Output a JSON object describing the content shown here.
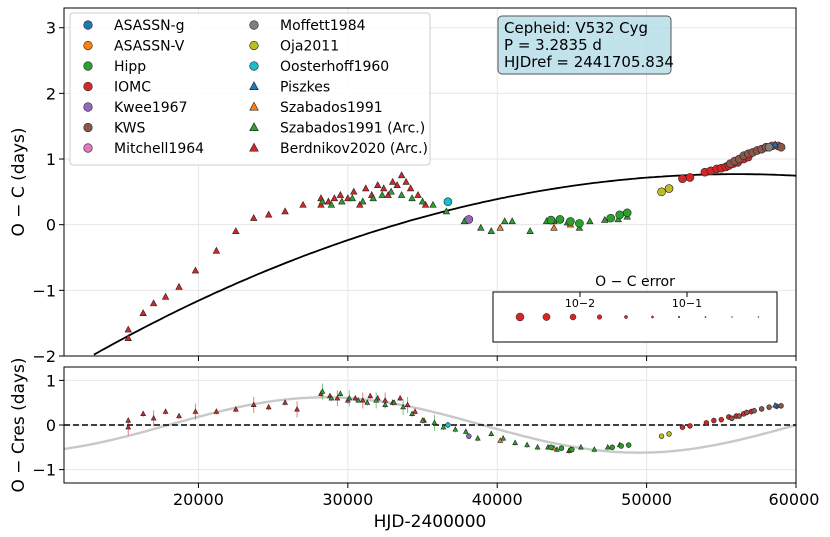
{
  "chart_data": [
    {
      "type": "scatter",
      "ylabel": "O − C (days)",
      "xlim": [
        11000,
        60000
      ],
      "ylim": [
        -2,
        3.3
      ],
      "yticks": [
        -2,
        -1,
        0,
        1,
        2,
        3
      ],
      "ytick_labels": [
        "−2",
        "−1",
        "0",
        "1",
        "2",
        "3"
      ],
      "grid": true,
      "info_box": {
        "line1": "Cepheid: V532 Cyg",
        "line2": "P = 3.2835 d",
        "line3": "HJDref = 2441705.834"
      },
      "legend": {
        "location": "upper-left",
        "entries": [
          {
            "label": "ASASSN-g",
            "marker": "circle",
            "color": "#1f77b4"
          },
          {
            "label": "ASASSN-V",
            "marker": "circle",
            "color": "#ff7f0e"
          },
          {
            "label": "Hipp",
            "marker": "circle",
            "color": "#2ca02c"
          },
          {
            "label": "IOMC",
            "marker": "circle",
            "color": "#d62728"
          },
          {
            "label": "Kwee1967",
            "marker": "circle",
            "color": "#9467bd"
          },
          {
            "label": "KWS",
            "marker": "circle",
            "color": "#8c564b"
          },
          {
            "label": "Mitchell1964",
            "marker": "circle",
            "color": "#e377c2"
          },
          {
            "label": "Moffett1984",
            "marker": "circle",
            "color": "#7f7f7f"
          },
          {
            "label": "Oja2011",
            "marker": "circle",
            "color": "#bcbd22"
          },
          {
            "label": "Oosterhoff1960",
            "marker": "circle",
            "color": "#17becf"
          },
          {
            "label": "Piszkes",
            "marker": "triangle",
            "color": "#1f77b4"
          },
          {
            "label": "Szabados1991",
            "marker": "triangle",
            "color": "#ff7f0e"
          },
          {
            "label": "Szabados1991 (Arc.)",
            "marker": "triangle",
            "color": "#2ca02c"
          },
          {
            "label": "Berdnikov2020 (Arc.)",
            "marker": "triangle",
            "color": "#d62728"
          }
        ]
      },
      "error_legend": {
        "title": "O − C error",
        "tick1": "10−2",
        "tick2": "10−1"
      },
      "fit_curve": {
        "type": "parabola",
        "vertex_x": 56000,
        "vertex_y": 0.77,
        "y_at_13000": -1.98
      },
      "series": [
        {
          "name": "Berdnikov2020 (Arc.)",
          "marker": "triangle",
          "color": "#d62728",
          "points": [
            [
              15300,
              -1.73
            ],
            [
              15300,
              -1.6
            ],
            [
              16300,
              -1.35
            ],
            [
              17000,
              -1.2
            ],
            [
              17800,
              -1.1
            ],
            [
              18700,
              -0.95
            ],
            [
              19800,
              -0.7
            ],
            [
              21200,
              -0.4
            ],
            [
              22500,
              -0.1
            ],
            [
              23700,
              0.1
            ],
            [
              24700,
              0.15
            ],
            [
              25800,
              0.2
            ],
            [
              27000,
              0.3
            ],
            [
              28200,
              0.4
            ],
            [
              28200,
              0.3
            ],
            [
              28700,
              0.35
            ],
            [
              29100,
              0.4
            ],
            [
              29500,
              0.45
            ],
            [
              30000,
              0.4
            ],
            [
              30400,
              0.5
            ],
            [
              30800,
              0.3
            ],
            [
              31200,
              0.55
            ],
            [
              31600,
              0.45
            ],
            [
              32000,
              0.6
            ],
            [
              32400,
              0.55
            ],
            [
              32700,
              0.45
            ],
            [
              33000,
              0.65
            ],
            [
              33300,
              0.6
            ],
            [
              33600,
              0.75
            ],
            [
              33900,
              0.65
            ],
            [
              34200,
              0.55
            ],
            [
              34700,
              0.45
            ],
            [
              35200,
              0.3
            ]
          ]
        },
        {
          "name": "Szabados1991 (Arc.)",
          "marker": "triangle",
          "color": "#2ca02c",
          "points": [
            [
              28300,
              0.35
            ],
            [
              28900,
              0.3
            ],
            [
              29600,
              0.35
            ],
            [
              30300,
              0.4
            ],
            [
              31000,
              0.35
            ],
            [
              31700,
              0.4
            ],
            [
              32300,
              0.45
            ],
            [
              32900,
              0.5
            ],
            [
              33600,
              0.45
            ],
            [
              34300,
              0.4
            ],
            [
              35000,
              0.35
            ],
            [
              35700,
              0.3
            ],
            [
              36600,
              0.2
            ],
            [
              37800,
              0.05
            ],
            [
              38900,
              -0.05
            ],
            [
              39600,
              -0.1
            ],
            [
              40500,
              0.05
            ],
            [
              41000,
              0.05
            ],
            [
              42200,
              -0.1
            ],
            [
              43300,
              0.05
            ],
            [
              43800,
              0.05
            ],
            [
              44700,
              0.03
            ],
            [
              45500,
              -0.05
            ],
            [
              46200,
              0.05
            ],
            [
              47200,
              0.07
            ],
            [
              48100,
              0.08
            ],
            [
              48700,
              0.12
            ]
          ]
        },
        {
          "name": "Szabados1991",
          "marker": "triangle",
          "color": "#ff7f0e",
          "points": [
            [
              40200,
              -0.05
            ],
            [
              43800,
              -0.05
            ],
            [
              44900,
              0.0
            ]
          ]
        },
        {
          "name": "Hipp",
          "marker": "circle",
          "color": "#2ca02c",
          "points": [
            [
              43600,
              0.07
            ],
            [
              44200,
              0.08
            ],
            [
              44900,
              0.05
            ],
            [
              45500,
              0.02
            ],
            [
              47600,
              0.1
            ],
            [
              48200,
              0.15
            ],
            [
              48700,
              0.18
            ]
          ]
        },
        {
          "name": "Oosterhoff1960",
          "marker": "circle",
          "color": "#17becf",
          "points": [
            [
              36700,
              0.35
            ]
          ]
        },
        {
          "name": "Kwee1967",
          "marker": "circle",
          "color": "#9467bd",
          "points": [
            [
              38100,
              0.08
            ]
          ]
        },
        {
          "name": "Oja2011",
          "marker": "circle",
          "color": "#bcbd22",
          "points": [
            [
              51000,
              0.5
            ],
            [
              51500,
              0.55
            ]
          ]
        },
        {
          "name": "IOMC",
          "marker": "circle",
          "color": "#d62728",
          "points": [
            [
              52400,
              0.7
            ],
            [
              52900,
              0.72
            ],
            [
              53900,
              0.8
            ],
            [
              54300,
              0.82
            ],
            [
              54700,
              0.85
            ],
            [
              55000,
              0.86
            ],
            [
              55300,
              0.88
            ],
            [
              55500,
              0.9
            ],
            [
              55800,
              0.93
            ],
            [
              56100,
              0.95
            ],
            [
              56500,
              1.0
            ],
            [
              56800,
              1.03
            ]
          ]
        },
        {
          "name": "KWS",
          "marker": "circle",
          "color": "#8c564b",
          "points": [
            [
              55600,
              0.93
            ],
            [
              55900,
              0.97
            ],
            [
              56200,
              1.0
            ],
            [
              56500,
              1.05
            ],
            [
              56800,
              1.08
            ],
            [
              57100,
              1.1
            ],
            [
              57400,
              1.13
            ],
            [
              57700,
              1.15
            ],
            [
              58000,
              1.18
            ],
            [
              58400,
              1.2
            ],
            [
              58800,
              1.2
            ],
            [
              59000,
              1.18
            ]
          ]
        },
        {
          "name": "Piszkes",
          "marker": "triangle",
          "color": "#1f77b4",
          "points": [
            [
              58600,
              1.22
            ]
          ]
        },
        {
          "name": "Moffett1984",
          "marker": "circle",
          "color": "#7f7f7f",
          "points": [
            [
              58200,
              1.18
            ]
          ]
        }
      ]
    },
    {
      "type": "scatter",
      "xlabel": "HJD-2400000",
      "ylabel": "O − Cres (days)",
      "xlim": [
        11000,
        60000
      ],
      "ylim": [
        -1.3,
        1.3
      ],
      "xticks": [
        20000,
        30000,
        40000,
        50000,
        60000
      ],
      "xtick_labels": [
        "20000",
        "30000",
        "40000",
        "50000",
        "60000"
      ],
      "yticks": [
        -1,
        0,
        1
      ],
      "ytick_labels": [
        "−1",
        "0",
        "1"
      ],
      "zero_line": "dashed",
      "sine_fit": {
        "amplitude": 0.62,
        "period": 42000,
        "phase_zero_x": 18000
      },
      "series": [
        {
          "name": "Berdnikov2020 (Arc.)",
          "color": "#d62728",
          "points": [
            [
              15300,
              -0.05
            ],
            [
              15300,
              0.1
            ],
            [
              16300,
              0.25
            ],
            [
              17000,
              0.15
            ],
            [
              17800,
              0.3
            ],
            [
              18700,
              0.2
            ],
            [
              19800,
              0.3
            ],
            [
              21200,
              0.3
            ],
            [
              22500,
              0.35
            ],
            [
              23700,
              0.45
            ],
            [
              24700,
              0.4
            ],
            [
              25800,
              0.5
            ],
            [
              26600,
              0.35
            ],
            [
              28200,
              0.7
            ],
            [
              28800,
              0.65
            ],
            [
              29300,
              0.6
            ],
            [
              30000,
              0.55
            ],
            [
              30500,
              0.6
            ],
            [
              31000,
              0.55
            ],
            [
              31500,
              0.65
            ],
            [
              32000,
              0.6
            ],
            [
              32500,
              0.55
            ],
            [
              33000,
              0.5
            ],
            [
              33500,
              0.6
            ],
            [
              34000,
              0.45
            ],
            [
              34500,
              0.3
            ],
            [
              35100,
              0.1
            ]
          ]
        },
        {
          "name": "Szabados1991 (Arc.)",
          "color": "#2ca02c",
          "points": [
            [
              28300,
              0.75
            ],
            [
              28900,
              0.6
            ],
            [
              29500,
              0.7
            ],
            [
              30100,
              0.6
            ],
            [
              30700,
              0.55
            ],
            [
              31300,
              0.5
            ],
            [
              31900,
              0.55
            ],
            [
              32500,
              0.45
            ],
            [
              33100,
              0.5
            ],
            [
              33700,
              0.4
            ],
            [
              34300,
              0.25
            ],
            [
              35000,
              0.1
            ],
            [
              35800,
              0.05
            ],
            [
              36400,
              -0.05
            ],
            [
              37200,
              -0.1
            ],
            [
              37900,
              -0.15
            ],
            [
              38700,
              -0.3
            ],
            [
              39600,
              -0.2
            ],
            [
              40400,
              -0.3
            ],
            [
              41200,
              -0.4
            ],
            [
              42000,
              -0.45
            ],
            [
              42700,
              -0.5
            ],
            [
              43400,
              -0.5
            ],
            [
              44000,
              -0.55
            ],
            [
              44800,
              -0.58
            ],
            [
              45600,
              -0.5
            ],
            [
              46500,
              -0.55
            ],
            [
              47400,
              -0.5
            ],
            [
              48200,
              -0.45
            ]
          ]
        },
        {
          "name": "Szabados1991",
          "color": "#ff7f0e",
          "points": [
            [
              40200,
              -0.35
            ],
            [
              43800,
              -0.52
            ],
            [
              44900,
              -0.55
            ]
          ]
        },
        {
          "name": "Hipp",
          "color": "#2ca02c",
          "points": [
            [
              43600,
              -0.5
            ],
            [
              44300,
              -0.52
            ],
            [
              45000,
              -0.55
            ],
            [
              47700,
              -0.5
            ],
            [
              48300,
              -0.47
            ],
            [
              48800,
              -0.45
            ]
          ]
        },
        {
          "name": "Oosterhoff1960",
          "color": "#17becf",
          "points": [
            [
              36700,
              0.0
            ]
          ]
        },
        {
          "name": "Kwee1967",
          "color": "#9467bd",
          "points": [
            [
              38100,
              -0.25
            ]
          ]
        },
        {
          "name": "Oja2011",
          "color": "#bcbd22",
          "points": [
            [
              51000,
              -0.25
            ],
            [
              51500,
              -0.2
            ]
          ]
        },
        {
          "name": "IOMC",
          "color": "#d62728",
          "points": [
            [
              52400,
              -0.05
            ],
            [
              52900,
              -0.02
            ],
            [
              54000,
              0.05
            ],
            [
              54500,
              0.1
            ],
            [
              55000,
              0.12
            ],
            [
              55500,
              0.18
            ],
            [
              56000,
              0.2
            ],
            [
              56500,
              0.25
            ],
            [
              57000,
              0.3
            ]
          ]
        },
        {
          "name": "KWS",
          "color": "#8c564b",
          "points": [
            [
              55700,
              0.15
            ],
            [
              56200,
              0.2
            ],
            [
              56700,
              0.28
            ],
            [
              57200,
              0.32
            ],
            [
              57700,
              0.36
            ],
            [
              58200,
              0.4
            ],
            [
              58700,
              0.42
            ],
            [
              59000,
              0.43
            ]
          ]
        },
        {
          "name": "Piszkes",
          "color": "#1f77b4",
          "points": [
            [
              58600,
              0.44
            ]
          ]
        }
      ]
    }
  ]
}
